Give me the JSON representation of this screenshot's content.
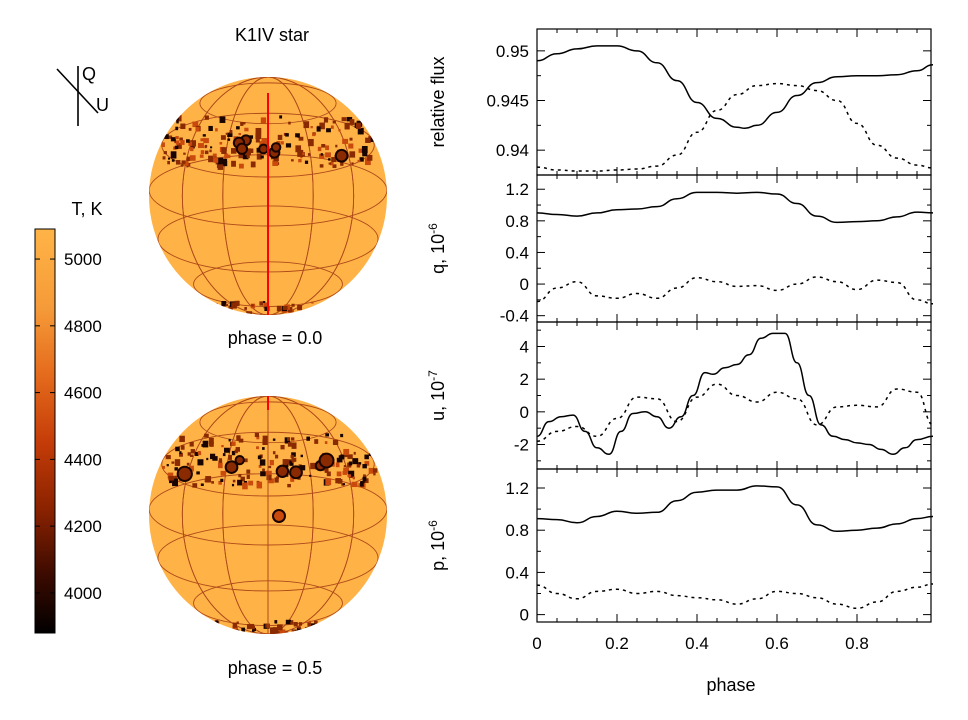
{
  "colors": {
    "star_base": "#ffb347",
    "grid_line": "#b04a1a",
    "meridian": "#ff0000",
    "spot_dark": "#1a0400",
    "spot_mid": "#8a2a00",
    "spot_light": "#c94a0c"
  },
  "left_panel": {
    "title": "K1IV star",
    "legend_labels": {
      "q": "Q",
      "u": "U"
    },
    "colorbar": {
      "title": "T, K",
      "ticks": [
        "5000",
        "4800",
        "4600",
        "4400",
        "4200",
        "4000"
      ],
      "tick_values": [
        5000,
        4800,
        4600,
        4400,
        4200,
        4000
      ],
      "range": [
        3880,
        5090
      ],
      "gradient_stops": [
        {
          "value": 3880,
          "color": "#000000"
        },
        {
          "value": 4050,
          "color": "#3a0a00"
        },
        {
          "value": 4250,
          "color": "#8a2200"
        },
        {
          "value": 4450,
          "color": "#c43c08"
        },
        {
          "value": 4650,
          "color": "#e46a1c"
        },
        {
          "value": 4850,
          "color": "#f59a38"
        },
        {
          "value": 5090,
          "color": "#ffb447"
        }
      ]
    },
    "stars": [
      {
        "id": "phase-0",
        "caption": "phase = 0.0",
        "phase": 0.0
      },
      {
        "id": "phase-05",
        "caption": "phase = 0.5",
        "phase": 0.5
      }
    ]
  },
  "chart_data": [
    {
      "type": "line",
      "id": "flux",
      "ylabel": "relative flux",
      "ylabel_exp": "",
      "ylim": [
        0.9375,
        0.9522
      ],
      "yticks": [
        0.94,
        0.945,
        0.95
      ],
      "ytick_labels": [
        "0.94",
        "0.945",
        "0.95"
      ],
      "series": [
        {
          "name": "solid",
          "dash": "none",
          "x": [
            0,
            0.05,
            0.1,
            0.15,
            0.2,
            0.25,
            0.3,
            0.35,
            0.4,
            0.45,
            0.5,
            0.52,
            0.55,
            0.6,
            0.65,
            0.7,
            0.75,
            0.8,
            0.85,
            0.9,
            0.95,
            0.99
          ],
          "y": [
            0.949,
            0.9497,
            0.9502,
            0.9505,
            0.9505,
            0.95,
            0.9488,
            0.947,
            0.9448,
            0.9432,
            0.9423,
            0.9422,
            0.9425,
            0.9438,
            0.9455,
            0.9468,
            0.9474,
            0.9475,
            0.9475,
            0.9476,
            0.948,
            0.9486
          ]
        },
        {
          "name": "dotted",
          "dash": "3,4",
          "x": [
            0,
            0.05,
            0.1,
            0.15,
            0.2,
            0.25,
            0.3,
            0.35,
            0.4,
            0.45,
            0.5,
            0.55,
            0.6,
            0.65,
            0.7,
            0.75,
            0.8,
            0.85,
            0.9,
            0.95,
            0.99
          ],
          "y": [
            0.9383,
            0.938,
            0.9379,
            0.9379,
            0.938,
            0.9381,
            0.9384,
            0.9395,
            0.9418,
            0.944,
            0.9456,
            0.9465,
            0.9467,
            0.9465,
            0.946,
            0.945,
            0.9427,
            0.9405,
            0.9392,
            0.9385,
            0.9382
          ]
        }
      ]
    },
    {
      "type": "line",
      "id": "q",
      "ylabel": "q, 10",
      "ylabel_exp": "-6",
      "ylim": [
        -0.48,
        1.38
      ],
      "yticks": [
        -0.4,
        0,
        0.4,
        0.8,
        1.2
      ],
      "ytick_labels": [
        "-0.4",
        "0",
        "0.4",
        "0.8",
        "1.2"
      ],
      "series": [
        {
          "name": "solid",
          "dash": "none",
          "x": [
            0,
            0.05,
            0.1,
            0.15,
            0.2,
            0.25,
            0.3,
            0.35,
            0.4,
            0.45,
            0.5,
            0.55,
            0.6,
            0.65,
            0.7,
            0.75,
            0.8,
            0.85,
            0.9,
            0.95,
            0.99
          ],
          "y": [
            0.9,
            0.88,
            0.86,
            0.9,
            0.94,
            0.95,
            0.98,
            1.08,
            1.16,
            1.16,
            1.15,
            1.16,
            1.14,
            1.02,
            0.86,
            0.78,
            0.79,
            0.8,
            0.85,
            0.91,
            0.9
          ]
        },
        {
          "name": "dotted",
          "dash": "3,4",
          "x": [
            0,
            0.05,
            0.1,
            0.15,
            0.2,
            0.25,
            0.3,
            0.35,
            0.4,
            0.45,
            0.5,
            0.55,
            0.6,
            0.65,
            0.7,
            0.75,
            0.8,
            0.85,
            0.9,
            0.95,
            0.99
          ],
          "y": [
            -0.22,
            -0.05,
            0.03,
            -0.15,
            -0.18,
            -0.12,
            -0.18,
            -0.05,
            0.08,
            0.03,
            -0.03,
            -0.02,
            -0.08,
            0.0,
            0.09,
            0.03,
            -0.07,
            0.05,
            0.02,
            -0.2,
            -0.25
          ]
        }
      ]
    },
    {
      "type": "line",
      "id": "u",
      "ylabel": "u, 10",
      "ylabel_exp": "-7",
      "ylim": [
        -3.5,
        5.5
      ],
      "yticks": [
        -2,
        0,
        2,
        4
      ],
      "ytick_labels": [
        "-2",
        "0",
        "2",
        "4"
      ],
      "series": [
        {
          "name": "solid",
          "dash": "none",
          "x": [
            0,
            0.03,
            0.06,
            0.09,
            0.12,
            0.15,
            0.18,
            0.21,
            0.24,
            0.27,
            0.3,
            0.33,
            0.36,
            0.39,
            0.42,
            0.44,
            0.47,
            0.5,
            0.53,
            0.56,
            0.59,
            0.62,
            0.65,
            0.68,
            0.71,
            0.74,
            0.77,
            0.8,
            0.83,
            0.86,
            0.89,
            0.92,
            0.95,
            0.99
          ],
          "y": [
            -1.5,
            -0.6,
            -0.3,
            -0.2,
            -1.2,
            -2.2,
            -2.6,
            -1.2,
            -0.1,
            0.0,
            -0.3,
            -1.0,
            -0.3,
            1.0,
            2.4,
            2.3,
            2.7,
            2.9,
            3.5,
            4.5,
            4.8,
            4.8,
            3.0,
            1.0,
            -0.8,
            -1.5,
            -1.7,
            -1.9,
            -2.0,
            -2.3,
            -2.6,
            -2.2,
            -1.7,
            -1.5
          ]
        },
        {
          "name": "dotted",
          "dash": "3,4",
          "x": [
            0,
            0.05,
            0.1,
            0.15,
            0.2,
            0.25,
            0.3,
            0.35,
            0.4,
            0.45,
            0.5,
            0.55,
            0.6,
            0.65,
            0.7,
            0.75,
            0.8,
            0.85,
            0.9,
            0.95,
            0.99
          ],
          "y": [
            -1.8,
            -1.2,
            -0.9,
            -1.5,
            -0.4,
            0.9,
            0.8,
            -0.6,
            0.9,
            1.7,
            1.0,
            0.6,
            1.2,
            0.8,
            -0.8,
            0.3,
            0.4,
            0.3,
            1.4,
            1.2,
            -0.8
          ]
        }
      ]
    },
    {
      "type": "line",
      "id": "p",
      "ylabel": "p, 10",
      "ylabel_exp": "-6",
      "ylim": [
        -0.07,
        1.38
      ],
      "yticks": [
        0,
        0.4,
        0.8,
        1.2
      ],
      "ytick_labels": [
        "0",
        "0.4",
        "0.8",
        "1.2"
      ],
      "series": [
        {
          "name": "solid",
          "dash": "none",
          "x": [
            0,
            0.05,
            0.1,
            0.15,
            0.2,
            0.25,
            0.3,
            0.35,
            0.4,
            0.45,
            0.5,
            0.55,
            0.6,
            0.65,
            0.7,
            0.75,
            0.8,
            0.85,
            0.9,
            0.95,
            0.99
          ],
          "y": [
            0.91,
            0.9,
            0.87,
            0.93,
            0.98,
            0.96,
            0.97,
            1.08,
            1.16,
            1.18,
            1.18,
            1.22,
            1.21,
            1.04,
            0.85,
            0.79,
            0.8,
            0.82,
            0.86,
            0.91,
            0.93
          ]
        },
        {
          "name": "dotted",
          "dash": "3,4",
          "x": [
            0,
            0.05,
            0.1,
            0.15,
            0.2,
            0.25,
            0.3,
            0.35,
            0.4,
            0.45,
            0.5,
            0.55,
            0.6,
            0.65,
            0.7,
            0.75,
            0.8,
            0.85,
            0.9,
            0.95,
            0.99
          ],
          "y": [
            0.28,
            0.2,
            0.15,
            0.22,
            0.24,
            0.2,
            0.22,
            0.18,
            0.16,
            0.14,
            0.1,
            0.15,
            0.22,
            0.2,
            0.16,
            0.1,
            0.06,
            0.12,
            0.22,
            0.26,
            0.29
          ]
        }
      ]
    }
  ],
  "x_axis": {
    "label": "phase",
    "xlim": [
      0,
      0.985
    ],
    "ticks": [
      0,
      0.2,
      0.4,
      0.6,
      0.8
    ],
    "tick_labels": [
      "0",
      "0.2",
      "0.4",
      "0.6",
      "0.8"
    ]
  }
}
